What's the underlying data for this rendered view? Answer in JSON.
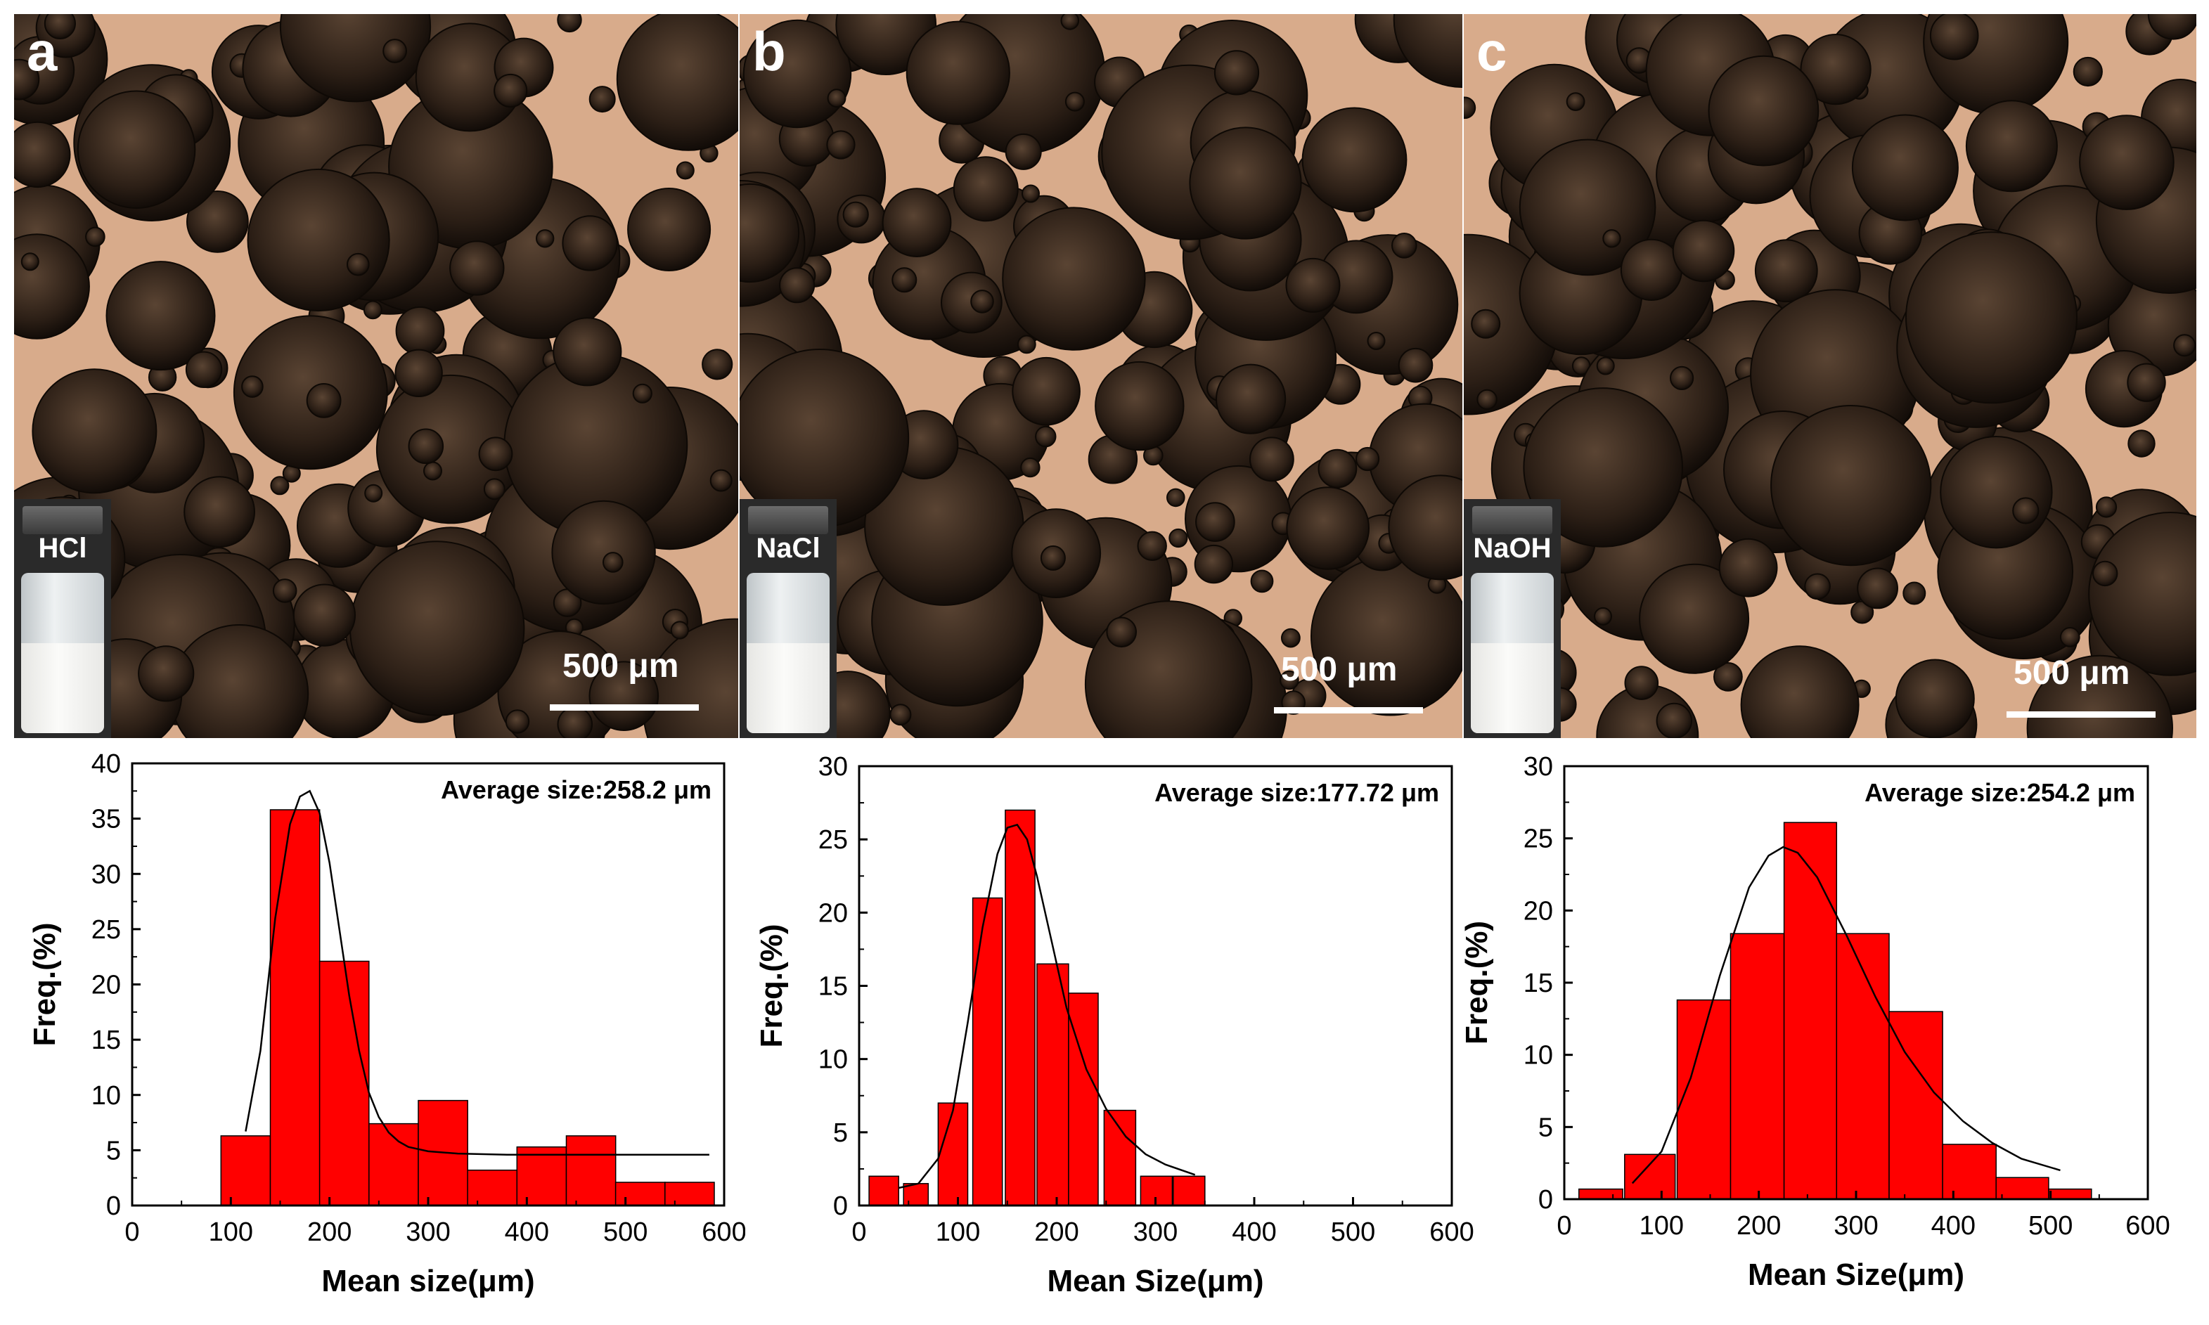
{
  "panels": [
    {
      "letter": "a",
      "vial_label": "HCl",
      "scale_label": "500 μm"
    },
    {
      "letter": "b",
      "vial_label": "NaCl",
      "scale_label": "500 μm"
    },
    {
      "letter": "c",
      "vial_label": "NaOH",
      "scale_label": "500 μm"
    }
  ],
  "colors": {
    "bar_fill": "#ff0000",
    "bar_stroke": "#000000",
    "fit_line": "#000000",
    "photo_bg": "#d8ab8b",
    "sphere": "#2c1f16"
  },
  "chart_data": [
    {
      "type": "bar",
      "panel": "a",
      "title": "",
      "annotation": "Average size:258.2 μm",
      "xlabel": "Mean size(μm)",
      "ylabel": "Freq.(%)",
      "xlim": [
        0,
        600
      ],
      "ylim": [
        0,
        40
      ],
      "xticks": [
        0,
        100,
        200,
        300,
        400,
        500,
        600
      ],
      "yticks": [
        0,
        5,
        10,
        15,
        20,
        25,
        30,
        35,
        40
      ],
      "bin_width": 50,
      "bin_starts": [
        90,
        140,
        190,
        240,
        290,
        340,
        390,
        440,
        490,
        540
      ],
      "values": [
        6.3,
        35.8,
        22.1,
        7.4,
        9.5,
        3.2,
        5.3,
        6.3,
        2.1,
        2.1
      ],
      "fit": {
        "x": [
          115,
          130,
          145,
          160,
          170,
          180,
          190,
          200,
          210,
          220,
          230,
          240,
          250,
          260,
          270,
          280,
          300,
          330,
          380,
          450,
          520,
          585
        ],
        "y": [
          6.7,
          14,
          26,
          34.5,
          37,
          37.5,
          35.5,
          31,
          25,
          19,
          14,
          10.2,
          8,
          6.6,
          5.8,
          5.3,
          4.9,
          4.7,
          4.6,
          4.6,
          4.6,
          4.6
        ]
      }
    },
    {
      "type": "bar",
      "panel": "b",
      "title": "",
      "annotation": "Average size:177.72 μm",
      "xlabel": "Mean Size(μm)",
      "ylabel": "Freq.(%)",
      "xlim": [
        0,
        600
      ],
      "ylim": [
        0,
        30
      ],
      "xticks": [
        0,
        100,
        200,
        300,
        400,
        500,
        600
      ],
      "yticks": [
        0,
        5,
        10,
        15,
        20,
        25,
        30
      ],
      "bin_width": 30,
      "bin_starts": [
        10,
        40,
        70,
        100,
        130,
        160,
        190,
        220,
        250,
        280,
        310
      ],
      "values": [
        2,
        1.5,
        7,
        21,
        27,
        16.5,
        14.5,
        6.5,
        2,
        2,
        0
      ],
      "bars": [
        {
          "start": 10,
          "width": 30,
          "value": 2
        },
        {
          "start": 45,
          "width": 25,
          "value": 1.5
        },
        {
          "start": 80,
          "width": 30,
          "value": 7
        },
        {
          "start": 115,
          "width": 30,
          "value": 21
        },
        {
          "start": 148,
          "width": 30,
          "value": 27
        },
        {
          "start": 180,
          "width": 32,
          "value": 16.5
        },
        {
          "start": 212,
          "width": 30,
          "value": 14.5
        },
        {
          "start": 248,
          "width": 32,
          "value": 6.5
        },
        {
          "start": 285,
          "width": 32,
          "value": 2
        },
        {
          "start": 318,
          "width": 32,
          "value": 2
        }
      ],
      "fit": {
        "x": [
          40,
          60,
          80,
          95,
          110,
          125,
          140,
          150,
          160,
          170,
          180,
          195,
          210,
          230,
          250,
          270,
          290,
          310,
          340
        ],
        "y": [
          1.2,
          1.5,
          3.2,
          6.5,
          12.5,
          19,
          24,
          25.8,
          26,
          25,
          22.5,
          18,
          13.5,
          9.3,
          6.6,
          4.7,
          3.5,
          2.8,
          2.1
        ]
      }
    },
    {
      "type": "bar",
      "panel": "c",
      "title": "",
      "annotation": "Average size:254.2 μm",
      "xlabel": "Mean Size(μm)",
      "ylabel": "Freq.(%)",
      "xlim": [
        0,
        600
      ],
      "ylim": [
        0,
        30
      ],
      "xticks": [
        0,
        100,
        200,
        300,
        400,
        500,
        600
      ],
      "yticks": [
        0,
        5,
        10,
        15,
        20,
        25,
        30
      ],
      "bin_width": 53,
      "bin_starts": [
        15,
        65,
        118,
        171,
        224,
        277,
        330,
        383,
        436,
        489
      ],
      "values": [
        0.7,
        3.1,
        13.8,
        18.4,
        26.1,
        18.4,
        13,
        3.8,
        1.5,
        0.7
      ],
      "bars": [
        {
          "start": 15,
          "width": 45,
          "value": 0.7
        },
        {
          "start": 62,
          "width": 52,
          "value": 3.1
        },
        {
          "start": 116,
          "width": 55,
          "value": 13.8
        },
        {
          "start": 171,
          "width": 55,
          "value": 18.4
        },
        {
          "start": 226,
          "width": 54,
          "value": 26.1
        },
        {
          "start": 280,
          "width": 54,
          "value": 18.4
        },
        {
          "start": 334,
          "width": 55,
          "value": 13
        },
        {
          "start": 389,
          "width": 55,
          "value": 3.8
        },
        {
          "start": 444,
          "width": 54,
          "value": 1.5
        },
        {
          "start": 498,
          "width": 44,
          "value": 0.7
        }
      ],
      "fit": {
        "x": [
          70,
          100,
          130,
          160,
          190,
          210,
          225,
          240,
          260,
          290,
          320,
          350,
          380,
          410,
          440,
          470,
          510
        ],
        "y": [
          1.1,
          3.3,
          8.4,
          15.5,
          21.6,
          23.8,
          24.4,
          24,
          22.3,
          18.3,
          14,
          10.2,
          7.4,
          5.4,
          3.9,
          2.8,
          2
        ]
      }
    }
  ]
}
